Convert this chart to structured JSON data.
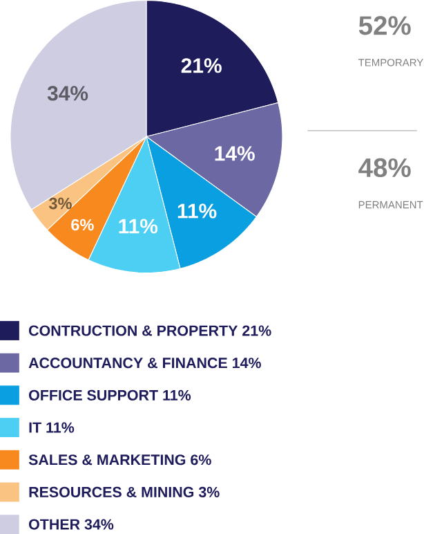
{
  "chart_data": {
    "type": "pie",
    "categories": [
      "CONTRUCTION & PROPERTY 21%",
      "ACCOUNTANCY & FINANCE 14%",
      "OFFICE SUPPORT 11%",
      "IT 11%",
      "SALES & MARKETING 6%",
      "RESOURCES & MINING 3%",
      "OTHER 34%"
    ],
    "values": [
      21,
      14,
      11,
      11,
      6,
      3,
      34
    ],
    "value_labels": [
      "21%",
      "14%",
      "11%",
      "11%",
      "6%",
      "3%",
      "34%"
    ],
    "colors": [
      "#1f1c5c",
      "#6c68a4",
      "#0a9fe0",
      "#4ccff3",
      "#f7891f",
      "#fbc381",
      "#cfcde1"
    ],
    "legend": "bottom",
    "annotations": [
      "52%",
      "TEMPORARY",
      "48%",
      "PERMANENT"
    ]
  }
}
